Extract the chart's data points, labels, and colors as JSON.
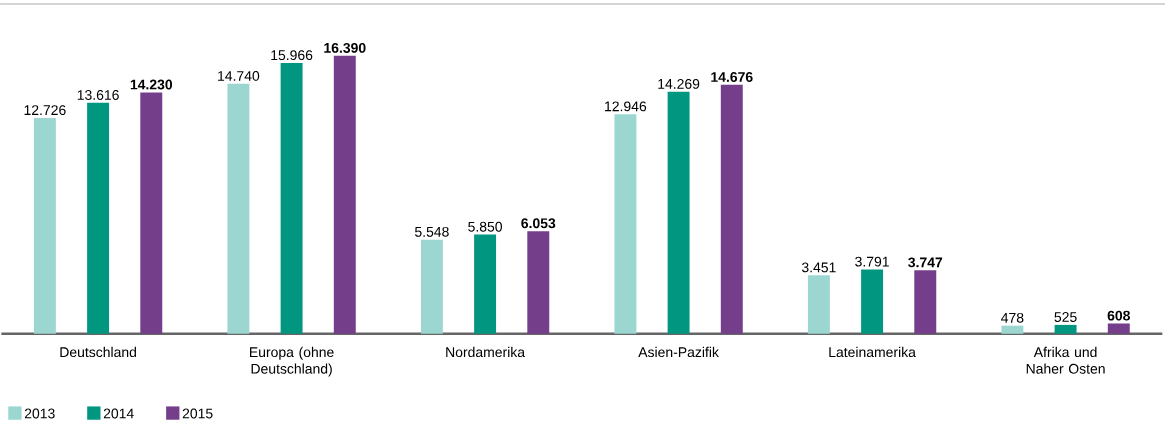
{
  "chart_data": {
    "type": "bar",
    "categories": [
      "Deutschland",
      "Europa (ohne Deutschland)",
      "Nordamerika",
      "Asien-Pazifik",
      "Lateinamerika",
      "Afrika und Naher Osten"
    ],
    "series": [
      {
        "name": "2013",
        "color": "#9bd7d0",
        "values": [
          12726,
          14740,
          5548,
          12946,
          3451,
          478
        ],
        "value_labels": [
          "12.726",
          "14.740",
          "5.548",
          "12.946",
          "3.451",
          "478"
        ]
      },
      {
        "name": "2014",
        "color": "#00967f",
        "values": [
          13616,
          15966,
          5850,
          14269,
          3791,
          525
        ],
        "value_labels": [
          "13.616",
          "15.966",
          "5.850",
          "14.269",
          "3.791",
          "525"
        ]
      },
      {
        "name": "2015",
        "color": "#743e8b",
        "values": [
          14230,
          16390,
          6053,
          14676,
          3747,
          608
        ],
        "value_labels": [
          "14.230",
          "16.390",
          "6.053",
          "14.676",
          "3.747",
          "608"
        ]
      }
    ],
    "legend": "bottom left"
  }
}
